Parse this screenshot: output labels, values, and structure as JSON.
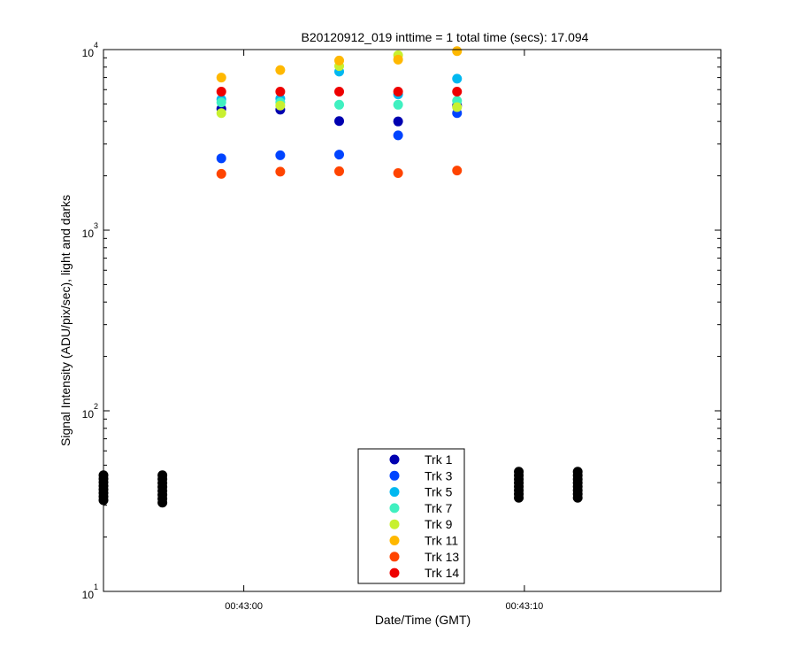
{
  "chart_data": {
    "type": "scatter",
    "title": "B20120912_019 inttime = 1 total time (secs): 17.094",
    "xlabel": "Date/Time (GMT)",
    "ylabel": "Signal Intensity (ADU/pix/sec), light and darks",
    "y_scale": "log",
    "ylim": [
      10,
      10000
    ],
    "xlim": [
      "00:42:55.000",
      "00:43:17.000"
    ],
    "y_ticks": [
      {
        "base": "10",
        "exp": "1",
        "value": 10
      },
      {
        "base": "10",
        "exp": "2",
        "value": 100
      },
      {
        "base": "10",
        "exp": "3",
        "value": 1000
      },
      {
        "base": "10",
        "exp": "4",
        "value": 10000
      }
    ],
    "x_ticks": [
      {
        "label": "00:43:00",
        "t": "00:43:00.000"
      },
      {
        "label": "00:43:10",
        "t": "00:43:10.000"
      }
    ],
    "x_values": [
      "00:42:59.200",
      "00:43:01.300",
      "00:43:03.400",
      "00:43:05.500",
      "00:43:07.600"
    ],
    "series": [
      {
        "name": "Trk 1",
        "color": "#0000b0",
        "values": [
          4700,
          4650,
          4020,
          4000,
          4900
        ]
      },
      {
        "name": "Trk 3",
        "color": "#0044ff",
        "values": [
          2500,
          2600,
          2620,
          3350,
          4450
        ]
      },
      {
        "name": "Trk 5",
        "color": "#00b8f0",
        "values": [
          5300,
          5350,
          7550,
          5650,
          6900
        ]
      },
      {
        "name": "Trk 7",
        "color": "#40f0c0",
        "values": [
          5100,
          5100,
          4950,
          4950,
          5200
        ]
      },
      {
        "name": "Trk 9",
        "color": "#c8f030",
        "values": [
          4450,
          4900,
          8100,
          9300,
          4800
        ]
      },
      {
        "name": "Trk 11",
        "color": "#ffb800",
        "values": [
          7000,
          7700,
          8700,
          8800,
          9800
        ]
      },
      {
        "name": "Trk 13",
        "color": "#ff4400",
        "values": [
          2050,
          2110,
          2120,
          2070,
          2140
        ]
      },
      {
        "name": "Trk 14",
        "color": "#ee0000",
        "values": [
          5850,
          5850,
          5850,
          5850,
          5850
        ]
      }
    ],
    "darks": {
      "color": "#000000",
      "x_values": [
        "00:42:55.000",
        "00:42:57.100",
        "00:43:09.800",
        "00:43:11.900"
      ],
      "min": [
        32,
        31,
        33,
        33
      ],
      "max": [
        44,
        44,
        46,
        46
      ]
    },
    "legend": {
      "placement": "bottom-center",
      "entries": [
        "Trk 1",
        "Trk 3",
        "Trk 5",
        "Trk 7",
        "Trk 9",
        "Trk 11",
        "Trk 13",
        "Trk 14"
      ]
    },
    "grid": false
  }
}
